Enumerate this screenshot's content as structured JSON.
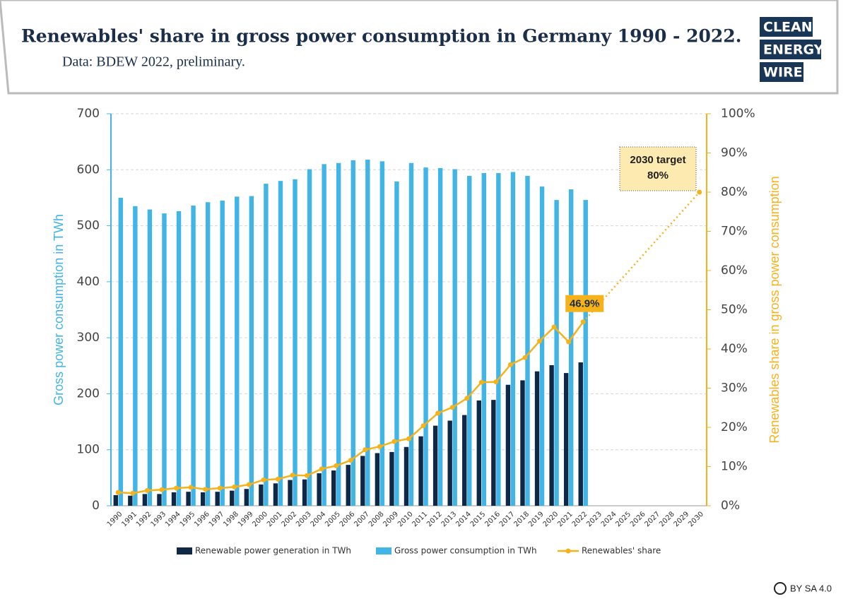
{
  "header": {
    "title": "Renewables' share in gross power consumption in Germany 1990 - 2022.",
    "subtitle": "Data: BDEW 2022, preliminary.",
    "logo": [
      "CLEAN",
      "ENERGY",
      "WIRE"
    ]
  },
  "license": "BY SA 4.0",
  "chart_data": {
    "type": "bar-line",
    "ylabel": "Gross power consumption in TWh",
    "y2label": "Renewables share in gross power consumption",
    "categories": [
      "1990",
      "1991",
      "1992",
      "1993",
      "1994",
      "1995",
      "1996",
      "1997",
      "1998",
      "1999",
      "2000",
      "2001",
      "2002",
      "2003",
      "2004",
      "2005",
      "2006",
      "2007",
      "2008",
      "2009",
      "2010",
      "2011",
      "2012",
      "2013",
      "2014",
      "2015",
      "2016",
      "2017",
      "2018",
      "2019",
      "2020",
      "2021",
      "2022",
      "2023",
      "2024",
      "2025",
      "2026",
      "2027",
      "2028",
      "2029",
      "2030"
    ],
    "series": [
      {
        "name": "Renewable power generation in TWh",
        "color": "#0f2846",
        "type": "bar",
        "values": [
          19,
          18,
          21,
          21,
          24,
          25,
          24,
          25,
          27,
          30,
          38,
          40,
          46,
          47,
          58,
          63,
          73,
          89,
          94,
          96,
          105,
          124,
          143,
          152,
          162,
          188,
          189,
          216,
          224,
          240,
          251,
          237,
          256,
          null,
          null,
          null,
          null,
          null,
          null,
          null,
          null
        ]
      },
      {
        "name": "Gross power consumption in TWh",
        "color": "#41b6e6",
        "type": "bar",
        "values": [
          550,
          535,
          529,
          522,
          526,
          536,
          542,
          545,
          552,
          553,
          575,
          580,
          583,
          601,
          610,
          612,
          617,
          618,
          615,
          579,
          612,
          604,
          603,
          601,
          589,
          594,
          594,
          596,
          589,
          570,
          546,
          565,
          546,
          null,
          null,
          null,
          null,
          null,
          null,
          null,
          null
        ]
      },
      {
        "name": "Renewables' share",
        "color": "#f5b21b",
        "type": "line",
        "axis": "y2",
        "values": [
          3.4,
          3.2,
          3.9,
          4.1,
          4.5,
          4.7,
          4.2,
          4.5,
          4.8,
          5.4,
          6.6,
          6.8,
          7.8,
          7.7,
          9.4,
          10.2,
          11.6,
          14.3,
          15.1,
          16.4,
          17.1,
          20.4,
          23.6,
          25.1,
          27.4,
          31.5,
          31.6,
          36.0,
          37.8,
          42.0,
          45.6,
          41.8,
          46.9,
          null,
          null,
          null,
          null,
          null,
          null,
          null,
          null
        ],
        "value_labels": [
          null,
          null,
          null,
          null,
          null,
          null,
          null,
          null,
          null,
          null,
          null,
          null,
          null,
          null,
          null,
          null,
          null,
          null,
          null,
          null,
          null,
          null,
          null,
          null,
          null,
          null,
          null,
          null,
          null,
          null,
          null,
          null,
          "46.9%",
          null,
          null,
          null,
          null,
          null,
          null,
          null,
          null
        ]
      }
    ],
    "target": {
      "label": "2030 target",
      "x": "2030",
      "value": 80,
      "value_label": "80%"
    },
    "ylim": [
      0,
      700
    ],
    "yticks": [
      0,
      100,
      200,
      300,
      400,
      500,
      600,
      700
    ],
    "y2lim": [
      0,
      100
    ],
    "y2ticks": [
      {
        "value": 0,
        "label": "0%"
      },
      {
        "value": 10,
        "label": "10%"
      },
      {
        "value": 20,
        "label": "20%"
      },
      {
        "value": 30,
        "label": "30%"
      },
      {
        "value": 40,
        "label": "40%"
      },
      {
        "value": 50,
        "label": "50%"
      },
      {
        "value": 60,
        "label": "60%"
      },
      {
        "value": 70,
        "label": "70%"
      },
      {
        "value": 80,
        "label": "80%"
      },
      {
        "value": 90,
        "label": "90%"
      },
      {
        "value": 100,
        "label": "100%"
      }
    ],
    "grid": true,
    "legend": "bottom"
  }
}
